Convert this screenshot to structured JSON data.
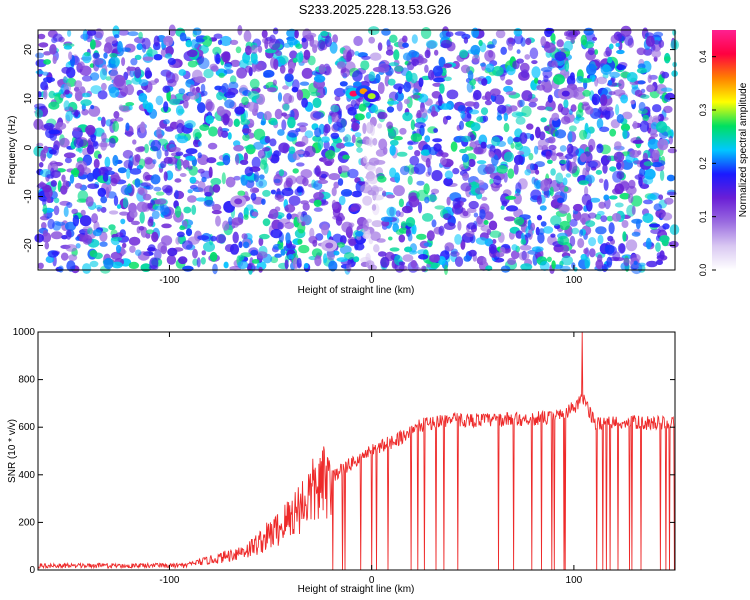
{
  "title": "S233.2025.228.13.53.G26",
  "chart_data": [
    {
      "type": "heatmap",
      "xlabel": "Height of straight line (km)",
      "ylabel": "Frequency (Hz)",
      "xlim": [
        -165,
        150
      ],
      "ylim": [
        -25,
        24
      ],
      "xticks": [
        -100,
        0,
        100
      ],
      "yticks": [
        -20,
        -10,
        0,
        10,
        20
      ],
      "colorbar": {
        "label": "Normalized spectral amplitude",
        "range": [
          0,
          0.45
        ],
        "ticks": [
          "0.0",
          "0.1",
          "0.2",
          "0.3",
          "0.4"
        ],
        "colormap": [
          "#ffffff",
          "#d9c8f2",
          "#9a6be0",
          "#6a1fd6",
          "#1a1aff",
          "#00c8ff",
          "#00e060",
          "#ffff00",
          "#ff8000",
          "#ff0040",
          "#ff2090"
        ]
      },
      "hot_spots": [
        {
          "x": -9,
          "y": 11,
          "value": 0.42
        },
        {
          "x": -4,
          "y": 11.5,
          "value": 0.35
        },
        {
          "x": 0,
          "y": 10.5,
          "value": 0.3
        },
        {
          "x": 96,
          "y": 11,
          "value": 0.15
        },
        {
          "x": -66,
          "y": -11,
          "value": 0.12
        },
        {
          "x": -21,
          "y": -20,
          "value": 0.1
        }
      ],
      "background_note": ""
    },
    {
      "type": "line",
      "xlabel": "Height of straight line (km)",
      "ylabel": "SNR (10 * v/v)",
      "xlim": [
        -165,
        150
      ],
      "ylim": [
        0,
        1000
      ],
      "xticks": [
        -100,
        0,
        100
      ],
      "yticks": [
        0,
        200,
        400,
        600,
        800,
        1000
      ],
      "series": [
        {
          "color": "#ee2a2a",
          "envelope_x": [
            -165,
            -90,
            -75,
            -60,
            -45,
            -30,
            -15,
            0,
            15,
            25,
            35,
            60,
            90,
            100,
            105,
            110,
            130,
            150
          ],
          "envelope_y": [
            20,
            25,
            50,
            90,
            180,
            320,
            420,
            500,
            560,
            610,
            630,
            630,
            640,
            680,
            720,
            620,
            620,
            615
          ],
          "dips_to_zero_from_x": -20,
          "spike": {
            "x": 104,
            "y": 1000
          }
        }
      ]
    }
  ]
}
